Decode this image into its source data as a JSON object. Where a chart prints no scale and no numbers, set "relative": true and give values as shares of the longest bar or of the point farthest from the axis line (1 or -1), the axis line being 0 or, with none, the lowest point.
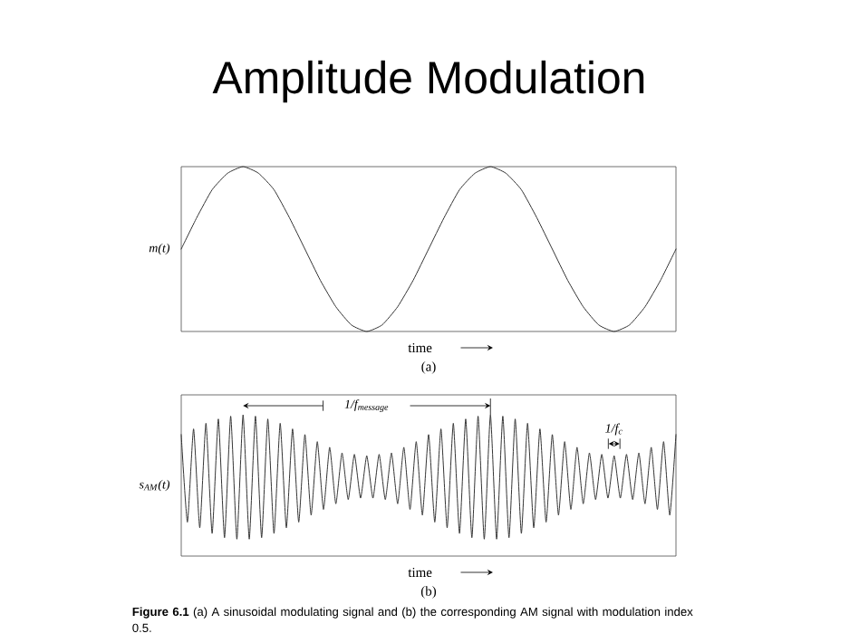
{
  "chart_data": [
    {
      "type": "line",
      "title": "Amplitude Modulation",
      "relative": true,
      "ylabel": "m(t)",
      "xlabel": "time",
      "annotations": [
        "(a)"
      ],
      "categories": [
        null,
        null,
        null,
        null,
        null,
        null,
        null,
        null,
        null,
        null,
        null,
        null,
        null,
        null,
        null,
        null,
        null,
        null,
        null,
        null,
        null,
        null,
        null,
        null,
        null,
        null,
        null,
        null,
        null,
        null,
        null,
        null,
        null
      ],
      "series": [
        {
          "color": "#333333",
          "values": [
            0.5,
            0.69,
            0.86,
            0.96,
            1,
            0.96,
            0.86,
            0.69,
            0.5,
            0.31,
            0.15,
            0.04,
            0,
            0.04,
            0.15,
            0.31,
            0.5,
            0.69,
            0.86,
            0.96,
            1,
            0.96,
            0.86,
            0.69,
            0.5,
            0.31,
            0.15,
            0.04,
            0,
            0.04,
            0.15,
            0.31,
            0.5
          ]
        }
      ]
    },
    {
      "type": "line",
      "relative": true,
      "ylabel": "s$_{AM}$(t)",
      "xlabel": "time",
      "annotations": [
        "1/f$_{message}$",
        "1/f$_{c}$",
        "(b)",
        "**Figure 6.1**    (a) A sinusoidal modulating signal and (b) the corresponding AM signal with modulation index 0.5."
      ],
      "categories": [
        null,
        null,
        null,
        null,
        null,
        null,
        null,
        null,
        null,
        null,
        null,
        null,
        null,
        null,
        null,
        null,
        null,
        null,
        null,
        null,
        null,
        null,
        null,
        null,
        null,
        null,
        null,
        null,
        null,
        null,
        null,
        null,
        null,
        null,
        null,
        null,
        null,
        null,
        null,
        null,
        null,
        null,
        null,
        null,
        null,
        null,
        null,
        null,
        null,
        null,
        null,
        null,
        null,
        null,
        null,
        null,
        null,
        null,
        null,
        null,
        null,
        null,
        null,
        null,
        null,
        null,
        null,
        null,
        null,
        null,
        null,
        null,
        null,
        null,
        null,
        null,
        null,
        null,
        null,
        null,
        null
      ],
      "series": [
        {
          "color": "#333333",
          "values": [
            0.86,
            0.24,
            0.9,
            0.2,
            0.94,
            0.16,
            0.97,
            0.13,
            0.99,
            0.12,
            1,
            0.12,
            0.99,
            0.13,
            0.97,
            0.16,
            0.94,
            0.2,
            0.9,
            0.24,
            0.86,
            0.29,
            0.81,
            0.33,
            0.77,
            0.37,
            0.73,
            0.4,
            0.72,
            0.41,
            0.71,
            0.41,
            0.72,
            0.4,
            0.73,
            0.37,
            0.77,
            0.33,
            0.81,
            0.29,
            0.86,
            0.24,
            0.9,
            0.2,
            0.94,
            0.16,
            0.97,
            0.13,
            0.99,
            0.12,
            1,
            0.12,
            0.99,
            0.13,
            0.97,
            0.16,
            0.94,
            0.2,
            0.9,
            0.24,
            0.86,
            0.29,
            0.81,
            0.33,
            0.77,
            0.37,
            0.73,
            0.4,
            0.72,
            0.41,
            0.71,
            0.41,
            0.72,
            0.4,
            0.73,
            0.37,
            0.77,
            0.33,
            0.81,
            0.29,
            0.86
          ]
        }
      ]
    }
  ]
}
